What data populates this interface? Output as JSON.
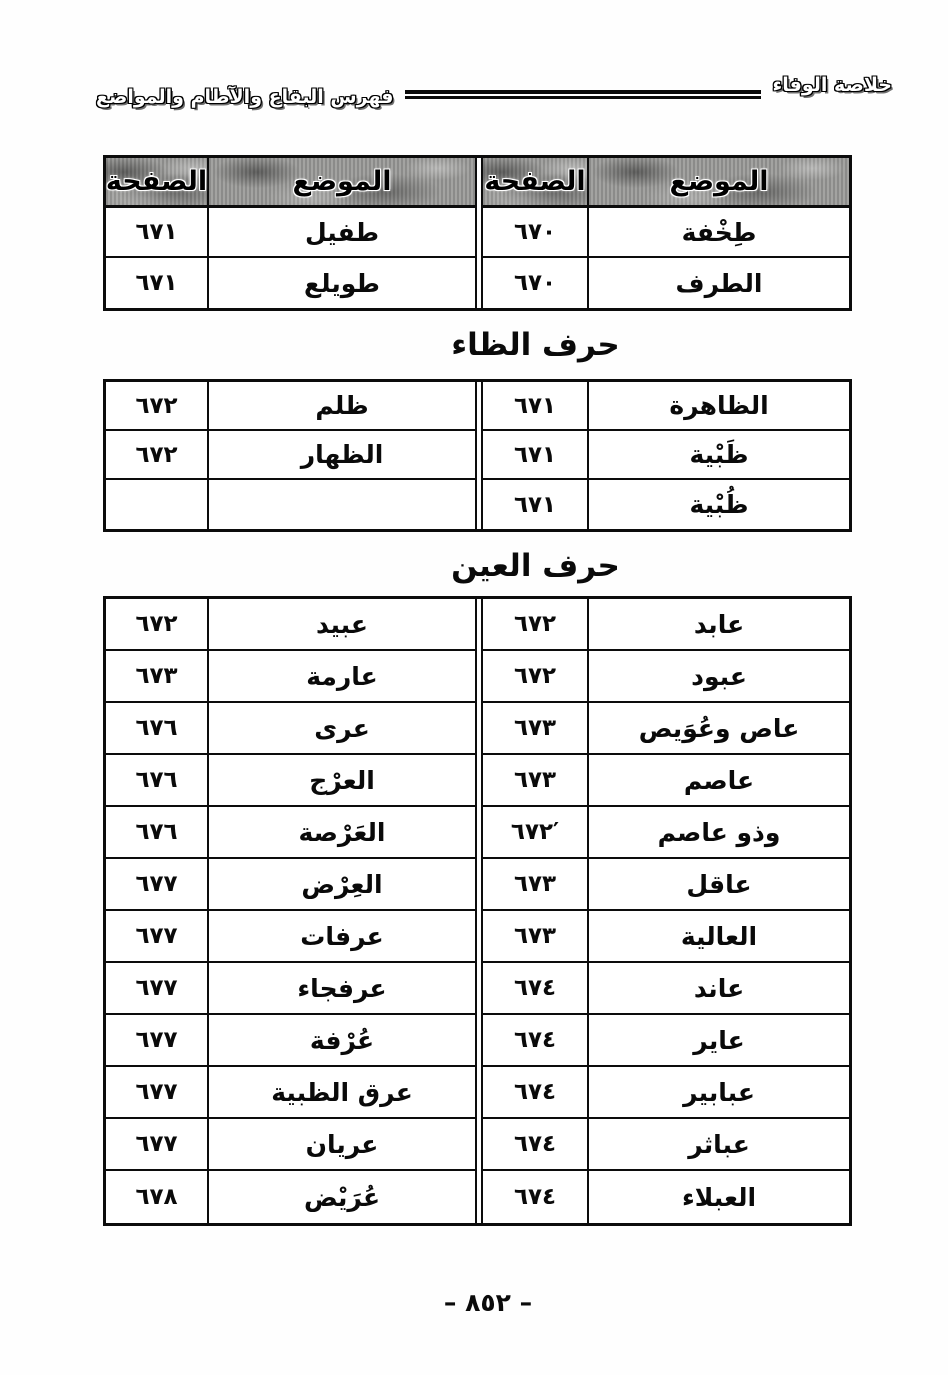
{
  "header": {
    "book_title": "خلاصة الوفاء",
    "section_title": "فهرس البقاع والآطام والمواضع"
  },
  "table_columns": {
    "place": "الموضع",
    "page": "الصفحة"
  },
  "sections": [
    {
      "heading": "",
      "rows": [
        [
          "طِخْفة",
          "٦٧٠",
          "طفيل",
          "٦٧١"
        ],
        [
          "الطرف",
          "٦٧٠",
          "طويلع",
          "٦٧١"
        ]
      ]
    },
    {
      "heading": "حرف الظاء",
      "rows": [
        [
          "الظاهرة",
          "٦٧١",
          "ظلم",
          "٦٧٢"
        ],
        [
          "ظَبْية",
          "٦٧١",
          "الظهار",
          "٦٧٢"
        ],
        [
          "ظُبْية",
          "٦٧١",
          "",
          ""
        ]
      ]
    },
    {
      "heading": "حرف العين",
      "rows": [
        [
          "عابد",
          "٦٧٢",
          "عبيد",
          "٦٧٢"
        ],
        [
          "عبود",
          "٦٧٢",
          "عارمة",
          "٦٧٣"
        ],
        [
          "عاص وعُوَيص",
          "٦٧٣",
          "عرى",
          "٦٧٦"
        ],
        [
          "عاصم",
          "٦٧٣",
          "العرْج",
          "٦٧٦"
        ],
        [
          "وذو عاصم",
          "′٦٧٢",
          "العَرْصة",
          "٦٧٦"
        ],
        [
          "عاقل",
          "٦٧٣",
          "العِرْض",
          "٦٧٧"
        ],
        [
          "العالية",
          "٦٧٣",
          "عرفات",
          "٦٧٧"
        ],
        [
          "عاند",
          "٦٧٤",
          "عرفجاء",
          "٦٧٧"
        ],
        [
          "عاير",
          "٦٧٤",
          "عُرْفة",
          "٦٧٧"
        ],
        [
          "عبابير",
          "٦٧٤",
          "عرق الظبية",
          "٦٧٧"
        ],
        [
          "عباثر",
          "٦٧٤",
          "عريان",
          "٦٧٧"
        ],
        [
          "العبلاء",
          "٦٧٤",
          "عُرَيْض",
          "٦٧٨"
        ]
      ]
    }
  ],
  "footer": {
    "page_number": "– ٨٥٢ –"
  }
}
